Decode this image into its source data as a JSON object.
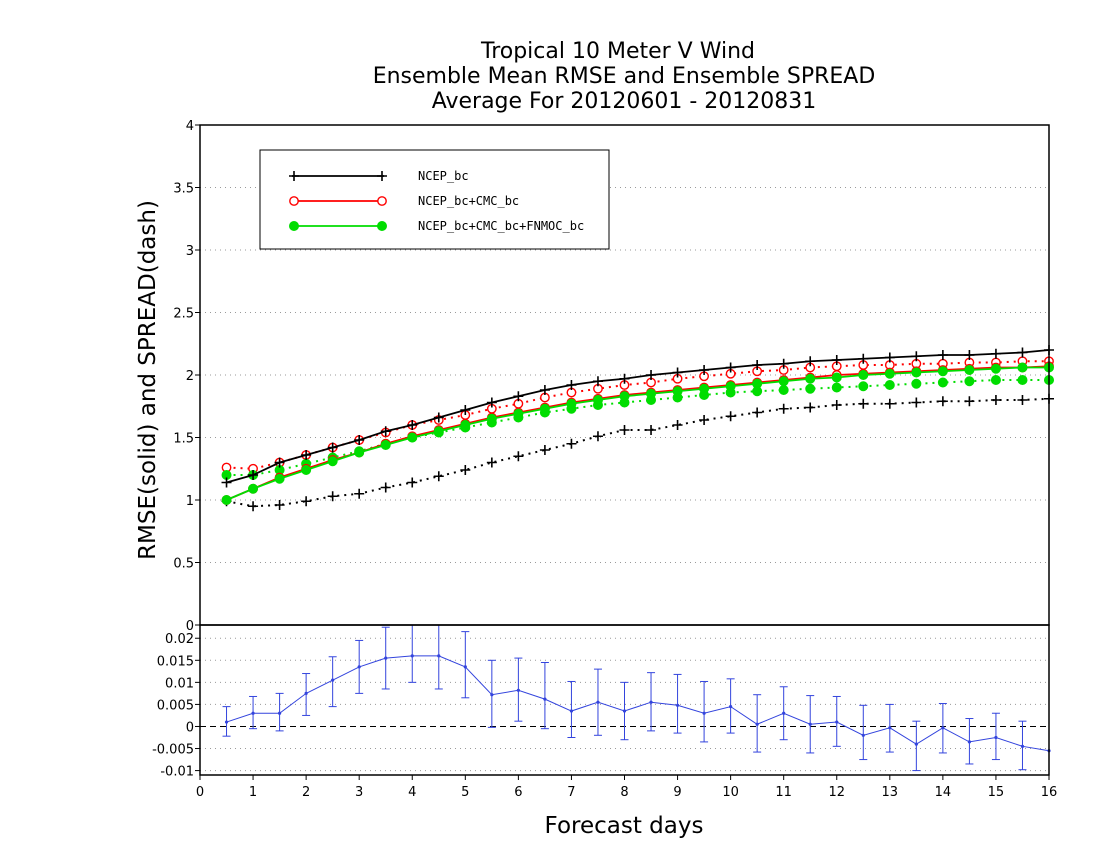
{
  "chart_data": [
    {
      "type": "line",
      "title_lines": [
        "Tropical 10 Meter V Wind",
        "Ensemble Mean RMSE and Ensemble SPREAD",
        "Average For 20120601 - 20120831"
      ],
      "ylabel": "RMSE(solid) and SPREAD(dash)",
      "xlim": [
        0,
        16
      ],
      "ylim": [
        0,
        4
      ],
      "yticks": [
        0,
        0.5,
        1,
        1.5,
        2,
        2.5,
        3,
        3.5,
        4
      ],
      "ytick_labels": [
        "0",
        "0.5",
        "1",
        "1.5",
        "2",
        "2.5",
        "3",
        "3.5",
        "4"
      ],
      "grid": true,
      "legend_position": "top-left",
      "x": [
        0.5,
        1,
        1.5,
        2,
        2.5,
        3,
        3.5,
        4,
        4.5,
        5,
        5.5,
        6,
        6.5,
        7,
        7.5,
        8,
        8.5,
        9,
        9.5,
        10,
        10.5,
        11,
        11.5,
        12,
        12.5,
        13,
        13.5,
        14,
        14.5,
        15,
        15.5,
        16
      ],
      "series": [
        {
          "name": "NCEP_bc",
          "color": "#000000",
          "marker": "plus",
          "rmse": [
            1.14,
            1.2,
            1.3,
            1.36,
            1.42,
            1.48,
            1.55,
            1.6,
            1.66,
            1.72,
            1.78,
            1.83,
            1.88,
            1.92,
            1.95,
            1.97,
            2.0,
            2.02,
            2.04,
            2.06,
            2.08,
            2.09,
            2.11,
            2.12,
            2.13,
            2.14,
            2.15,
            2.16,
            2.16,
            2.17,
            2.18,
            2.2
          ],
          "spread": [
            0.99,
            0.95,
            0.96,
            0.99,
            1.03,
            1.05,
            1.1,
            1.14,
            1.19,
            1.24,
            1.3,
            1.35,
            1.4,
            1.45,
            1.51,
            1.56,
            1.56,
            1.6,
            1.64,
            1.67,
            1.7,
            1.73,
            1.74,
            1.76,
            1.77,
            1.77,
            1.78,
            1.79,
            1.79,
            1.8,
            1.8,
            1.81
          ]
        },
        {
          "name": "NCEP_bc+CMC_bc",
          "color": "#ff0000",
          "marker": "open-circle",
          "rmse": [
            1.0,
            1.09,
            1.18,
            1.25,
            1.32,
            1.38,
            1.45,
            1.51,
            1.56,
            1.61,
            1.66,
            1.7,
            1.74,
            1.78,
            1.81,
            1.84,
            1.86,
            1.88,
            1.9,
            1.92,
            1.94,
            1.96,
            1.98,
            2.0,
            2.01,
            2.02,
            2.03,
            2.04,
            2.05,
            2.06,
            2.06,
            2.07
          ],
          "spread": [
            1.26,
            1.25,
            1.3,
            1.36,
            1.42,
            1.48,
            1.54,
            1.6,
            1.64,
            1.68,
            1.73,
            1.77,
            1.82,
            1.86,
            1.89,
            1.92,
            1.94,
            1.97,
            1.99,
            2.01,
            2.03,
            2.04,
            2.06,
            2.07,
            2.08,
            2.08,
            2.09,
            2.09,
            2.1,
            2.1,
            2.11,
            2.11
          ]
        },
        {
          "name": "NCEP_bc+CMC_bc+FNMOC_bc",
          "color": "#00dd00",
          "marker": "filled-circle",
          "rmse": [
            1.0,
            1.09,
            1.17,
            1.24,
            1.31,
            1.38,
            1.44,
            1.5,
            1.55,
            1.6,
            1.65,
            1.69,
            1.73,
            1.77,
            1.8,
            1.83,
            1.85,
            1.87,
            1.89,
            1.91,
            1.93,
            1.95,
            1.97,
            1.98,
            2.0,
            2.01,
            2.02,
            2.03,
            2.04,
            2.05,
            2.06,
            2.06
          ],
          "spread": [
            1.2,
            1.2,
            1.24,
            1.29,
            1.34,
            1.39,
            1.45,
            1.5,
            1.54,
            1.58,
            1.62,
            1.66,
            1.7,
            1.73,
            1.76,
            1.78,
            1.8,
            1.82,
            1.84,
            1.86,
            1.87,
            1.88,
            1.89,
            1.9,
            1.91,
            1.92,
            1.93,
            1.94,
            1.95,
            1.96,
            1.96,
            1.96
          ]
        }
      ]
    },
    {
      "type": "line",
      "xlabel": "Forecast days",
      "xlim": [
        0,
        16
      ],
      "xticks": [
        0,
        1,
        2,
        3,
        4,
        5,
        6,
        7,
        8,
        9,
        10,
        11,
        12,
        13,
        14,
        15,
        16
      ],
      "xtick_labels": [
        "0",
        "1",
        "2",
        "3",
        "4",
        "5",
        "6",
        "7",
        "8",
        "9",
        "10",
        "11",
        "12",
        "13",
        "14",
        "15",
        "16"
      ],
      "ylim": [
        -0.011,
        0.023
      ],
      "yticks": [
        -0.01,
        -0.005,
        0,
        0.005,
        0.01,
        0.015,
        0.02
      ],
      "ytick_labels": [
        "-0.01",
        "-0.005",
        "0",
        "0.005",
        "0.01",
        "0.015",
        "0.02"
      ],
      "top_label": "0",
      "grid": true,
      "series": [
        {
          "color": "#3344dd",
          "x": [
            0.5,
            1,
            1.5,
            2,
            2.5,
            3,
            3.5,
            4,
            4.5,
            5,
            5.5,
            6,
            6.5,
            7,
            7.5,
            8,
            8.5,
            9,
            9.5,
            10,
            10.5,
            11,
            11.5,
            12,
            12.5,
            13,
            13.5,
            14,
            14.5,
            15,
            15.5,
            16
          ],
          "values": [
            0.001,
            0.003,
            0.003,
            0.0075,
            0.0105,
            0.0135,
            0.0155,
            0.016,
            0.016,
            0.0135,
            0.0072,
            0.0082,
            0.0062,
            0.0035,
            0.0055,
            0.0035,
            0.0055,
            0.0048,
            0.003,
            0.0045,
            0.0005,
            0.003,
            0.0005,
            0.001,
            -0.002,
            -0.0003,
            -0.004,
            -0.0003,
            -0.0035,
            -0.0025,
            -0.0045,
            -0.0055
          ],
          "err_low": [
            -0.0022,
            -0.0005,
            -0.001,
            0.0025,
            0.0045,
            0.0075,
            0.0085,
            0.01,
            0.0085,
            0.0065,
            -0.0002,
            0.0012,
            -0.0005,
            -0.0025,
            -0.002,
            -0.003,
            -0.001,
            -0.0015,
            -0.0035,
            -0.0015,
            -0.0058,
            -0.003,
            -0.006,
            -0.0045,
            -0.0075,
            -0.0058,
            -0.01,
            -0.006,
            -0.0085,
            -0.0075,
            -0.0098,
            null
          ],
          "err_high": [
            0.0045,
            0.0068,
            0.0075,
            0.012,
            0.0158,
            0.0195,
            0.0225,
            0.023,
            0.024,
            0.0215,
            0.015,
            0.0155,
            0.0145,
            0.0102,
            0.013,
            0.01,
            0.0122,
            0.0118,
            0.0102,
            0.0108,
            0.0072,
            0.009,
            0.007,
            0.0068,
            0.0048,
            0.005,
            0.0012,
            0.0052,
            0.0018,
            0.003,
            0.0012,
            null
          ]
        }
      ]
    }
  ]
}
